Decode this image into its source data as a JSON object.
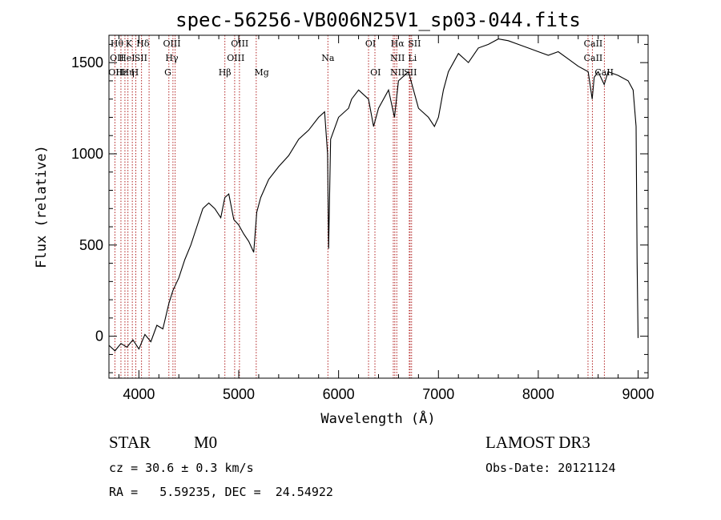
{
  "chart_data": {
    "type": "line",
    "title": "spec-56256-VB006N25V1_sp03-044.fits",
    "xlabel": "Wavelength (Å)",
    "ylabel": "Flux (relative)",
    "xlim": [
      3700,
      9100
    ],
    "ylim": [
      -230,
      1650
    ],
    "xticks": [
      4000,
      5000,
      6000,
      7000,
      8000,
      9000
    ],
    "yticks": [
      0,
      500,
      1000,
      1500
    ],
    "grid": false,
    "series": [
      {
        "x": [
          3700,
          3760,
          3820,
          3880,
          3940,
          4000,
          4060,
          4120,
          4180,
          4240,
          4300,
          4340,
          4400,
          4460,
          4520,
          4580,
          4640,
          4700,
          4760,
          4820,
          4860,
          4900,
          4950,
          5000,
          5050,
          5100,
          5150,
          5180,
          5220,
          5300,
          5400,
          5500,
          5600,
          5700,
          5800,
          5860,
          5890,
          5900,
          5920,
          6000,
          6100,
          6130,
          6200,
          6300,
          6350,
          6400,
          6500,
          6560,
          6600,
          6700,
          6800,
          6900,
          6960,
          7000,
          7050,
          7100,
          7200,
          7300,
          7400,
          7500,
          7600,
          7700,
          7800,
          7900,
          8000,
          8100,
          8200,
          8300,
          8400,
          8500,
          8540,
          8560,
          8600,
          8660,
          8700,
          8800,
          8900,
          8950,
          8980,
          8990,
          9000
        ],
        "y": [
          -50,
          -80,
          -40,
          -60,
          -20,
          -70,
          10,
          -30,
          60,
          40,
          180,
          250,
          320,
          420,
          500,
          600,
          700,
          730,
          700,
          650,
          760,
          780,
          640,
          610,
          560,
          520,
          460,
          680,
          760,
          860,
          930,
          990,
          1080,
          1130,
          1200,
          1230,
          1000,
          480,
          1080,
          1200,
          1250,
          1300,
          1350,
          1300,
          1150,
          1250,
          1350,
          1200,
          1400,
          1450,
          1250,
          1200,
          1150,
          1200,
          1350,
          1450,
          1550,
          1500,
          1580,
          1600,
          1630,
          1620,
          1600,
          1580,
          1560,
          1540,
          1560,
          1520,
          1480,
          1450,
          1300,
          1420,
          1450,
          1380,
          1450,
          1430,
          1400,
          1350,
          1150,
          400,
          -10
        ]
      }
    ],
    "annotations": {
      "lines": [
        {
          "x": 3760,
          "labels": [
            "Hθ",
            "OII",
            "OII"
          ]
        },
        {
          "x": 3820,
          "labels": [
            ""
          ]
        },
        {
          "x": 3860,
          "labels": [
            "Hε"
          ]
        },
        {
          "x": 3890,
          "labels": [
            "Hη"
          ]
        },
        {
          "x": 3934,
          "labels": [
            "K"
          ]
        },
        {
          "x": 3969,
          "labels": [
            "H"
          ]
        },
        {
          "x": 4026,
          "labels": [
            "HeI",
            "SII"
          ]
        },
        {
          "x": 4102,
          "labels": [
            "Hδ"
          ]
        },
        {
          "x": 4300,
          "labels": [
            "G"
          ]
        },
        {
          "x": 4341,
          "labels": [
            "Hγ"
          ]
        },
        {
          "x": 4363,
          "labels": [
            "OIII"
          ]
        },
        {
          "x": 4861,
          "labels": [
            "Hβ"
          ]
        },
        {
          "x": 4959,
          "labels": [
            "OIII"
          ]
        },
        {
          "x": 5007,
          "labels": [
            "OIII"
          ]
        },
        {
          "x": 5175,
          "labels": [
            "Mg"
          ]
        },
        {
          "x": 5893,
          "labels": [
            "Na"
          ]
        },
        {
          "x": 6300,
          "labels": [
            "OI"
          ]
        },
        {
          "x": 6364,
          "labels": [
            "OI"
          ]
        },
        {
          "x": 6548,
          "labels": [
            "NII"
          ]
        },
        {
          "x": 6563,
          "labels": [
            "Hα"
          ]
        },
        {
          "x": 6583,
          "labels": [
            "NII"
          ]
        },
        {
          "x": 6708,
          "labels": [
            "Li"
          ]
        },
        {
          "x": 6716,
          "labels": [
            "SII"
          ]
        },
        {
          "x": 6731,
          "labels": [
            "SII"
          ]
        },
        {
          "x": 8498,
          "labels": [
            "CaII"
          ]
        },
        {
          "x": 8542,
          "labels": [
            "CaII"
          ]
        },
        {
          "x": 8662,
          "labels": [
            "CaII"
          ]
        }
      ],
      "text": [
        {
          "text": "Hθ",
          "x": 3780,
          "row": 0
        },
        {
          "text": "K",
          "x": 3900,
          "row": 0
        },
        {
          "text": "Hδ",
          "x": 4040,
          "row": 0
        },
        {
          "text": "OIII",
          "x": 4330,
          "row": 0
        },
        {
          "text": "OIII",
          "x": 5010,
          "row": 0
        },
        {
          "text": "OI",
          "x": 6320,
          "row": 0
        },
        {
          "text": "Hα",
          "x": 6590,
          "row": 0
        },
        {
          "text": "SII",
          "x": 6760,
          "row": 0
        },
        {
          "text": "CaII",
          "x": 8550,
          "row": 0
        },
        {
          "text": "OII",
          "x": 3780,
          "row": 1
        },
        {
          "text": "HeI",
          "x": 3880,
          "row": 1
        },
        {
          "text": "SII",
          "x": 4020,
          "row": 1
        },
        {
          "text": "Hγ",
          "x": 4330,
          "row": 1
        },
        {
          "text": "OIII",
          "x": 4970,
          "row": 1
        },
        {
          "text": "Na",
          "x": 5893,
          "row": 1
        },
        {
          "text": "NII",
          "x": 6590,
          "row": 1
        },
        {
          "text": "Li",
          "x": 6740,
          "row": 1
        },
        {
          "text": "CaII",
          "x": 8550,
          "row": 1
        },
        {
          "text": "OII",
          "x": 3765,
          "row": 2
        },
        {
          "text": "Hε",
          "x": 3830,
          "row": 2
        },
        {
          "text": "Hη",
          "x": 3890,
          "row": 2
        },
        {
          "text": "H",
          "x": 3960,
          "row": 2
        },
        {
          "text": "G",
          "x": 4290,
          "row": 2
        },
        {
          "text": "Hβ",
          "x": 4861,
          "row": 2
        },
        {
          "text": "Mg",
          "x": 5230,
          "row": 2
        },
        {
          "text": "OI",
          "x": 6370,
          "row": 2
        },
        {
          "text": "NII",
          "x": 6590,
          "row": 2
        },
        {
          "text": "SII",
          "x": 6720,
          "row": 2
        },
        {
          "text": "CaII",
          "x": 8660,
          "row": 2
        }
      ]
    }
  },
  "info": {
    "class": "STAR",
    "subclass": "M0",
    "survey": "LAMOST DR3",
    "cz": "cz = 30.6 ± 0.3 km/s",
    "obs_date": "Obs-Date: 20121124",
    "radec": "RA =   5.59235, DEC =  24.54922"
  },
  "colors": {
    "line_markers": "#b22222",
    "spectrum": "#000000"
  }
}
